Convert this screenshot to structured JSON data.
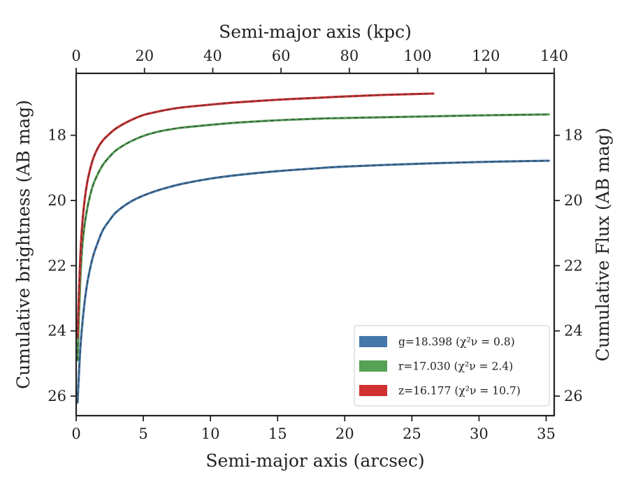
{
  "chart_data": {
    "type": "line",
    "xlabel": "Semi-major axis (arcsec)",
    "ylabel": "Cumulative brightness (AB mag)",
    "top_xlabel": "Semi-major axis (kpc)",
    "right_ylabel": "Cumulative Flux (AB mag)",
    "xlim": [
      0,
      35.6
    ],
    "ylim": [
      26.6,
      16.1
    ],
    "y_inverted": true,
    "top_xlim": [
      0,
      140
    ],
    "xticks": [
      "0",
      "5",
      "10",
      "15",
      "20",
      "25",
      "30",
      "35"
    ],
    "xtick_values": [
      0,
      5,
      10,
      15,
      20,
      25,
      30,
      35
    ],
    "top_xticks": [
      "0",
      "20",
      "40",
      "60",
      "80",
      "100",
      "120",
      "140"
    ],
    "top_xtick_values": [
      0,
      20,
      40,
      60,
      80,
      100,
      120,
      140
    ],
    "yticks": [
      "18",
      "20",
      "22",
      "24",
      "26"
    ],
    "ytick_values": [
      18,
      20,
      22,
      24,
      26
    ],
    "grid": false,
    "legend_position": "lower-right",
    "series": [
      {
        "band": "g",
        "legend_label": "g=18.398 (χ²ν = 0.8)",
        "color": "#4477aa",
        "x": [
          0.1,
          0.3,
          0.5,
          0.8,
          1.2,
          1.6,
          2.0,
          2.5,
          3.0,
          4.0,
          5.0,
          6.0,
          7.0,
          8.0,
          10.0,
          12.0,
          15.0,
          18.0,
          20.0,
          25.0,
          30.0,
          35.2
        ],
        "y": [
          26.2,
          24.6,
          23.6,
          22.6,
          21.8,
          21.3,
          20.9,
          20.6,
          20.35,
          20.05,
          19.85,
          19.7,
          19.58,
          19.48,
          19.33,
          19.22,
          19.1,
          19.01,
          18.96,
          18.88,
          18.82,
          18.78
        ]
      },
      {
        "band": "r",
        "legend_label": "r=17.030 (χ²ν = 2.4)",
        "color": "#55a155",
        "x": [
          0.1,
          0.3,
          0.5,
          0.8,
          1.2,
          1.6,
          2.0,
          2.5,
          3.0,
          4.0,
          5.0,
          6.0,
          7.0,
          8.0,
          10.0,
          12.0,
          15.0,
          18.0,
          20.0,
          25.0,
          30.0,
          35.2
        ],
        "y": [
          24.9,
          22.5,
          21.2,
          20.3,
          19.6,
          19.2,
          18.9,
          18.65,
          18.45,
          18.2,
          18.02,
          17.9,
          17.82,
          17.76,
          17.68,
          17.61,
          17.54,
          17.49,
          17.47,
          17.43,
          17.39,
          17.36
        ]
      },
      {
        "band": "z",
        "legend_label": "z=16.177 (χ²ν = 10.7)",
        "color": "#d03030",
        "x": [
          0.1,
          0.3,
          0.5,
          0.8,
          1.2,
          1.6,
          2.0,
          2.5,
          3.0,
          4.0,
          5.0,
          6.0,
          7.0,
          8.0,
          10.0,
          12.0,
          15.0,
          18.0,
          20.0,
          23.0,
          26.6
        ],
        "y": [
          24.2,
          21.8,
          20.5,
          19.5,
          18.8,
          18.4,
          18.15,
          17.95,
          17.78,
          17.55,
          17.38,
          17.28,
          17.2,
          17.14,
          17.06,
          16.99,
          16.91,
          16.85,
          16.81,
          16.76,
          16.72
        ]
      }
    ]
  }
}
